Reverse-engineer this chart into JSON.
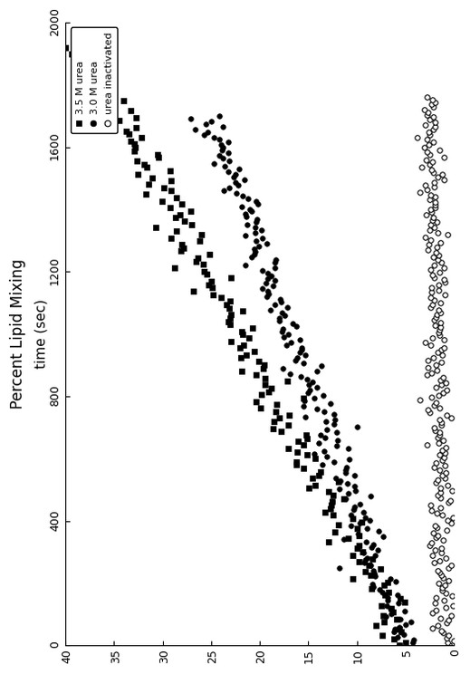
{
  "title": "Percent Lipid Mixing",
  "xlabel": "time (sec)",
  "ylabel": "Percent Lipid Mixing",
  "xlim": [
    0,
    2000
  ],
  "ylim": [
    0,
    40
  ],
  "xticks": [
    0,
    400,
    800,
    1200,
    1600,
    2000
  ],
  "yticks": [
    0,
    5,
    10,
    15,
    20,
    25,
    30,
    35,
    40
  ],
  "background_color": "#ffffff",
  "series": [
    {
      "label": "3.5 M urea",
      "marker": "s",
      "markersize": 4,
      "markerfacecolor": "#000000",
      "markeredgecolor": "#000000",
      "t_start": 0,
      "t_end": 1920,
      "y_start": 5.0,
      "y_end": 38.0,
      "n_points": 180,
      "noise": 1.2,
      "power": 1.0
    },
    {
      "label": "3.0 M urea",
      "marker": "o",
      "markersize": 4,
      "markerfacecolor": "#000000",
      "markeredgecolor": "#000000",
      "t_start": 0,
      "t_end": 1700,
      "y_start": 5.0,
      "y_end": 25.0,
      "n_points": 200,
      "noise": 1.0,
      "power": 1.0
    },
    {
      "label": "urea inactivated",
      "marker": "o",
      "markersize": 4,
      "markerfacecolor": "#ffffff",
      "markeredgecolor": "#000000",
      "t_start": 0,
      "t_end": 1760,
      "y_start": 1.0,
      "y_end": 2.5,
      "n_points": 220,
      "noise": 0.6,
      "power": 1.0
    }
  ],
  "legend_labels": [
    "■  3.5 M urea",
    "●  3.0 M urea",
    "○  urea inactivated"
  ]
}
